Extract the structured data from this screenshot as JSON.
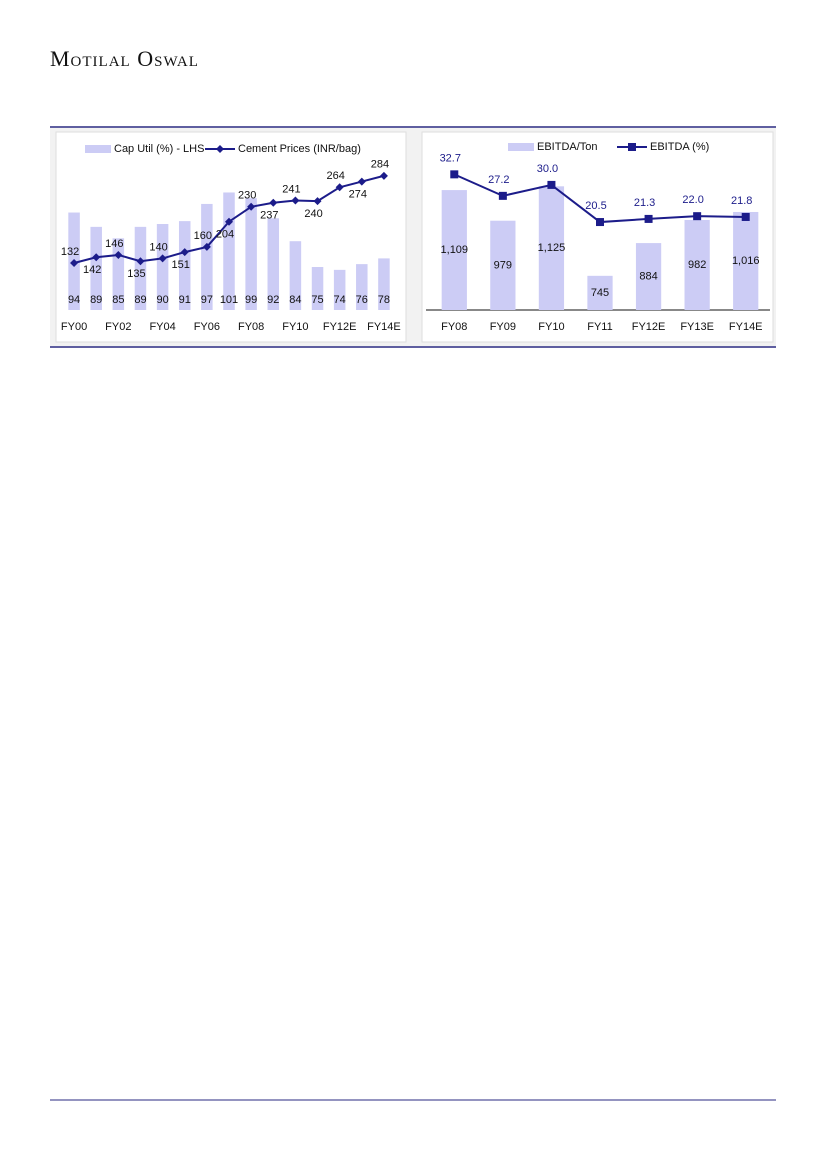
{
  "header": {
    "brand": "Motilal Oswal"
  },
  "chart_data": [
    {
      "type": "bar-line",
      "categories": [
        "FY00",
        null,
        "FY02",
        null,
        "FY04",
        null,
        "FY06",
        null,
        "FY08",
        null,
        "FY10",
        null,
        "FY12E",
        null,
        "FY14E"
      ],
      "ylim": [
        60,
        120
      ],
      "y2lim": [
        50,
        350
      ],
      "series": [
        {
          "name": "Cap Util (%) - LHS",
          "type": "bar",
          "color": "#ccccf5",
          "values": [
            94,
            89,
            85,
            89,
            90,
            91,
            97,
            101,
            99,
            92,
            84,
            75,
            74,
            76,
            78
          ]
        },
        {
          "name": "Cement Prices (INR/bag)",
          "type": "line",
          "axis": "y2",
          "color": "#1c1c8a",
          "marker": "diamond",
          "values": [
            132,
            142,
            146,
            135,
            140,
            151,
            160,
            204,
            230,
            237,
            241,
            240,
            264,
            274,
            284
          ]
        }
      ]
    },
    {
      "type": "bar-line",
      "categories": [
        "FY08",
        "FY09",
        "FY10",
        "FY11",
        "FY12E",
        "FY13E",
        "FY14E"
      ],
      "ylim": [
        600,
        1330
      ],
      "y2lim": [
        -2,
        42
      ],
      "baseline": true,
      "series": [
        {
          "name": "EBITDA/Ton",
          "type": "bar",
          "color": "#ccccf5",
          "values": [
            1109,
            979,
            1125,
            745,
            884,
            982,
            1016
          ],
          "value_labels": [
            "1,109",
            "979",
            "1,125",
            "745",
            "884",
            "982",
            "1,016"
          ]
        },
        {
          "name": "EBITDA (%)",
          "type": "line",
          "axis": "y2",
          "color": "#1c1c8a",
          "marker": "square",
          "values": [
            32.7,
            27.2,
            30.0,
            20.5,
            21.3,
            22.0,
            21.8
          ],
          "value_labels": [
            "32.7",
            "27.2",
            "30.0",
            "20.5",
            "21.3",
            "22.0",
            "21.8"
          ]
        }
      ]
    }
  ]
}
